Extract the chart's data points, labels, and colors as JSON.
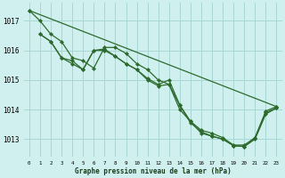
{
  "title": "Graphe pression niveau de la mer (hPa)",
  "background_color": "#cff0ee",
  "grid_color": "#a8d8d4",
  "line_color": "#2d6a2d",
  "xlim": [
    -0.5,
    23.5
  ],
  "ylim": [
    1012.4,
    1017.6
  ],
  "yticks": [
    1013,
    1014,
    1015,
    1016,
    1017
  ],
  "xticks": [
    0,
    1,
    2,
    3,
    4,
    5,
    6,
    7,
    8,
    9,
    10,
    11,
    12,
    13,
    14,
    15,
    16,
    17,
    18,
    19,
    20,
    21,
    22,
    23
  ],
  "series": [
    {
      "x": [
        0,
        1,
        2,
        3,
        4,
        5,
        6,
        7,
        8,
        9,
        10,
        11,
        12,
        13,
        14,
        15,
        16,
        17,
        18,
        19,
        20,
        21,
        22,
        23
      ],
      "y": [
        1017.35,
        1017.0,
        1016.55,
        1016.3,
        1015.75,
        1015.65,
        1015.4,
        1016.1,
        1016.1,
        1015.9,
        1015.55,
        1015.35,
        1015.0,
        1014.85,
        1014.15,
        1013.6,
        1013.3,
        1013.2,
        1013.05,
        1012.8,
        1012.8,
        1013.05,
        1013.95,
        1014.1
      ],
      "has_markers": true
    },
    {
      "x": [
        1,
        2,
        3,
        4,
        5,
        6,
        7,
        8,
        9,
        10,
        11,
        12,
        13,
        14,
        15,
        16,
        17,
        18,
        19,
        20,
        21,
        22,
        23
      ],
      "y": [
        1016.55,
        1016.3,
        1015.75,
        1015.55,
        1015.35,
        1016.0,
        1016.05,
        1015.8,
        1015.55,
        1015.35,
        1015.05,
        1014.85,
        1015.0,
        1014.15,
        1013.55,
        1013.25,
        1013.1,
        1013.0,
        1012.78,
        1012.75,
        1013.0,
        1013.85,
        1014.05
      ],
      "has_markers": true
    },
    {
      "x": [
        1,
        2,
        3,
        4,
        5,
        6,
        7,
        8,
        9,
        10,
        11,
        12,
        13,
        14,
        15,
        16,
        17,
        18,
        19,
        20,
        21,
        22,
        23
      ],
      "y": [
        1016.55,
        1016.3,
        1015.75,
        1015.65,
        1015.35,
        1016.0,
        1016.0,
        1015.8,
        1015.55,
        1015.35,
        1015.0,
        1014.8,
        1014.85,
        1014.0,
        1013.6,
        1013.2,
        1013.1,
        1013.0,
        1012.78,
        1012.75,
        1013.05,
        1013.9,
        1014.05
      ],
      "has_markers": true
    },
    {
      "x": [
        0,
        23
      ],
      "y": [
        1017.35,
        1014.1
      ],
      "has_markers": true
    }
  ]
}
